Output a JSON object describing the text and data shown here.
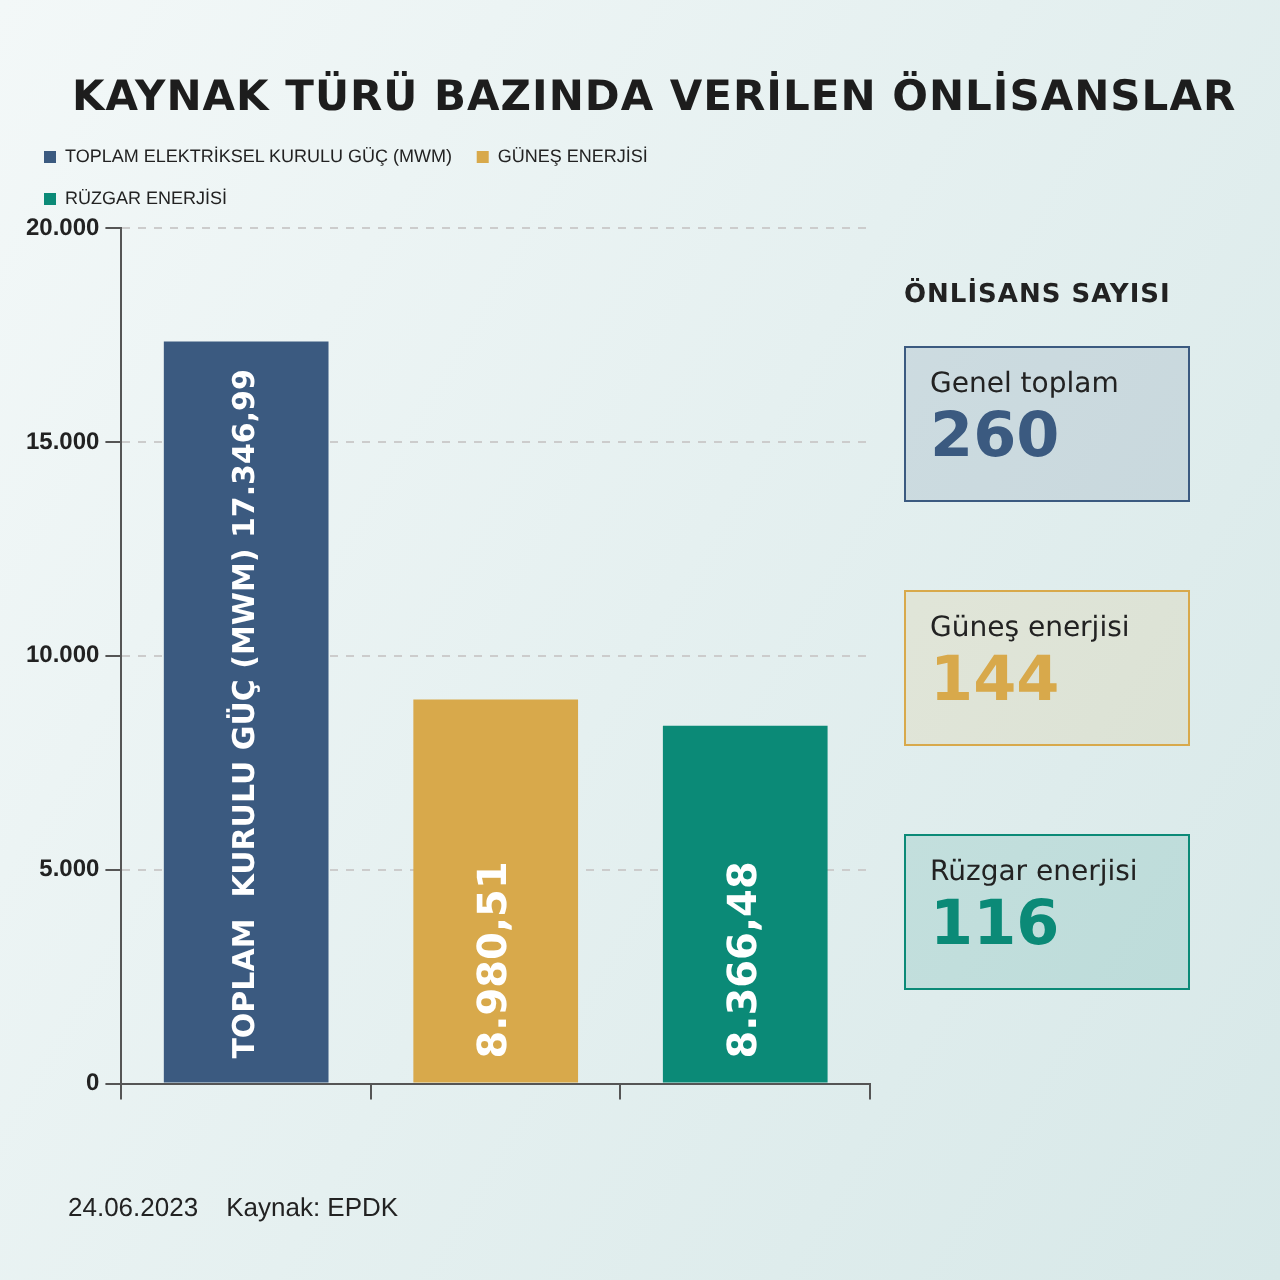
{
  "chart_data": [
    {
      "type": "bar",
      "title": "KAYNAK TÜRÜ BAZINDA VERİLEN ÖNLİSANSLAR",
      "categories": [
        null,
        null,
        null
      ],
      "series": [
        {
          "name": "TOPLAM ELEKTRİKSEL KURULU GÜÇ (MWM)",
          "color": "#3b5a80",
          "values": [
            17346.99,
            null,
            null
          ],
          "value_labels": [
            "TOPLAM  KURULU GÜÇ (MWM) 17.346,99",
            null,
            null
          ]
        },
        {
          "name": "GÜNEŞ ENERJİSİ",
          "color": "#d8a94b",
          "values": [
            null,
            8980.51,
            null
          ],
          "value_labels": [
            null,
            "8.980,51",
            null
          ]
        },
        {
          "name": "RÜZGAR ENERJİSİ",
          "color": "#0b8a77",
          "values": [
            null,
            null,
            8366.48
          ],
          "value_labels": [
            null,
            null,
            "8.366,48"
          ]
        }
      ],
      "ylim": [
        0,
        20000
      ],
      "yticks": [
        0,
        {
          "value": 5000,
          "label": "5.000"
        },
        {
          "value": 10000,
          "label": "10.000"
        },
        {
          "value": 15000,
          "label": "15.000"
        },
        {
          "value": 20000,
          "label": "20.000"
        }
      ],
      "grid": "y",
      "legend": "top left",
      "annotations": [
        "24.06.2023",
        "Kaynak: EPDK"
      ]
    },
    {
      "type": "other",
      "title": "ÖNLİSANS SAYISI",
      "annotations": [
        "Genel toplam",
        "260",
        "Güneş enerjisi",
        "144",
        "Rüzgar enerjisi",
        "116"
      ],
      "colors": [
        "#3b5a80",
        "#d8a94b",
        "#0b8a77"
      ]
    }
  ]
}
